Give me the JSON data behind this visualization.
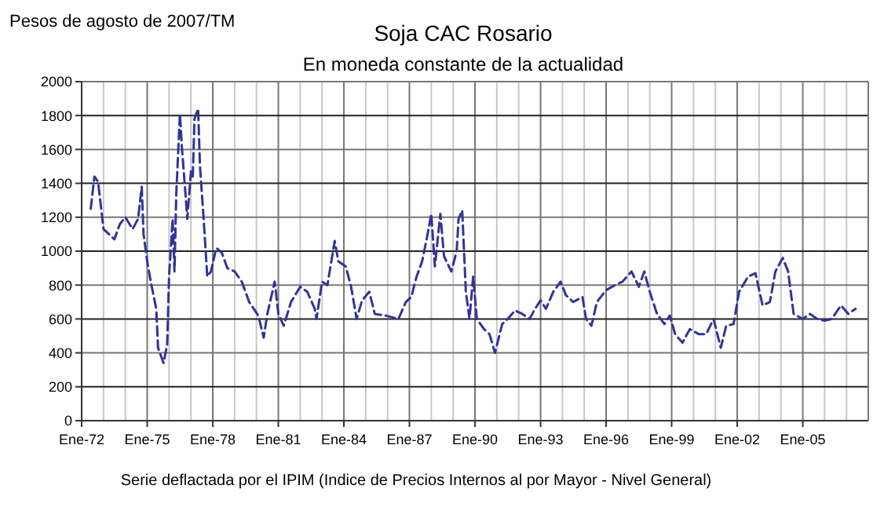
{
  "chart_data": {
    "type": "line",
    "title": "Soja CAC Rosario",
    "subtitle": "En moneda constante de la actualidad",
    "ylabel": "Pesos de agosto de 2007/TM",
    "annotations": [
      "Serie deflactada por el IPIM (Indice de Precios Internos al por Mayor - Nivel General)"
    ],
    "x": [
      "1972-06",
      "1972-08",
      "1972-10",
      "1973-01",
      "1973-04",
      "1973-07",
      "1973-10",
      "1974-01",
      "1974-05",
      "1974-08",
      "1974-10",
      "1974-11",
      "1975-01",
      "1975-03",
      "1975-06",
      "1975-07",
      "1975-10",
      "1975-12",
      "1976-01",
      "1976-03",
      "1976-04",
      "1976-05",
      "1976-07",
      "1976-08",
      "1976-10",
      "1976-11",
      "1977-01",
      "1977-02",
      "1977-03",
      "1977-05",
      "1977-06",
      "1977-08",
      "1977-10",
      "1977-12",
      "1978-03",
      "1978-06",
      "1978-09",
      "1979-01",
      "1979-05",
      "1979-09",
      "1980-02",
      "1980-05",
      "1980-07",
      "1980-11",
      "1981-01",
      "1981-04",
      "1981-08",
      "1982-01",
      "1982-05",
      "1982-09",
      "1982-10",
      "1983-01",
      "1983-04",
      "1983-08",
      "1983-10",
      "1984-02",
      "1984-05",
      "1984-08",
      "1984-11",
      "1985-03",
      "1985-06",
      "1985-12",
      "1986-07",
      "1986-11",
      "1987-02",
      "1987-05",
      "1987-08",
      "1987-11",
      "1988-01",
      "1988-03",
      "1988-06",
      "1988-08",
      "1988-12",
      "1989-03",
      "1989-04",
      "1989-06",
      "1989-08",
      "1989-10",
      "1989-12",
      "1990-02",
      "1990-06",
      "1990-09",
      "1990-12",
      "1991-04",
      "1991-07",
      "1991-11",
      "1992-03",
      "1992-07",
      "1992-10",
      "1993-01",
      "1993-04",
      "1993-08",
      "1993-12",
      "1994-03",
      "1994-07",
      "1994-12",
      "1995-02",
      "1995-05",
      "1995-08",
      "1996-01",
      "1996-06",
      "1996-10",
      "1997-03",
      "1997-07",
      "1997-10",
      "1998-01",
      "1998-05",
      "1998-09",
      "1998-12",
      "1999-03",
      "1999-07",
      "1999-11",
      "2000-04",
      "2000-08",
      "2000-12",
      "2001-04",
      "2001-07",
      "2001-11",
      "2002-02",
      "2002-07",
      "2002-11",
      "2003-03",
      "2003-07",
      "2003-10",
      "2004-02",
      "2004-05",
      "2004-08",
      "2005-01",
      "2005-05",
      "2005-09",
      "2006-01",
      "2006-05",
      "2006-10",
      "2007-02",
      "2007-06"
    ],
    "series": [
      {
        "color": "#333399",
        "values": [
          1250,
          1440,
          1410,
          1130,
          1100,
          1070,
          1160,
          1200,
          1130,
          1190,
          1380,
          1100,
          940,
          820,
          660,
          430,
          340,
          450,
          850,
          1190,
          880,
          1340,
          1810,
          1620,
          1340,
          1190,
          1470,
          1440,
          1780,
          1840,
          1500,
          1190,
          850,
          880,
          1020,
          990,
          900,
          880,
          820,
          700,
          620,
          490,
          630,
          820,
          630,
          560,
          700,
          790,
          760,
          660,
          600,
          820,
          800,
          1060,
          940,
          910,
          790,
          600,
          710,
          760,
          630,
          620,
          600,
          700,
          730,
          850,
          940,
          1100,
          1220,
          910,
          1220,
          970,
          880,
          1000,
          1190,
          1240,
          760,
          600,
          850,
          600,
          540,
          510,
          400,
          570,
          600,
          650,
          630,
          600,
          660,
          710,
          660,
          760,
          820,
          740,
          700,
          730,
          600,
          560,
          700,
          770,
          800,
          820,
          880,
          790,
          880,
          760,
          630,
          570,
          620,
          510,
          460,
          540,
          510,
          510,
          600,
          430,
          560,
          570,
          760,
          850,
          870,
          680,
          700,
          880,
          960,
          880,
          630,
          600,
          630,
          600,
          590,
          600,
          680,
          630,
          660
        ]
      }
    ],
    "xlim": [
      "1972-01",
      "2008-01"
    ],
    "xticks": [
      {
        "value": "1972-01",
        "label": "Ene-72"
      },
      {
        "value": "1973-01",
        "label": null
      },
      {
        "value": "1974-01",
        "label": null
      },
      {
        "value": "1975-01",
        "label": "Ene-75"
      },
      {
        "value": "1976-01",
        "label": null
      },
      {
        "value": "1977-01",
        "label": null
      },
      {
        "value": "1978-01",
        "label": "Ene-78"
      },
      {
        "value": "1979-01",
        "label": null
      },
      {
        "value": "1980-01",
        "label": null
      },
      {
        "value": "1981-01",
        "label": "Ene-81"
      },
      {
        "value": "1982-01",
        "label": null
      },
      {
        "value": "1983-01",
        "label": null
      },
      {
        "value": "1984-01",
        "label": "Ene-84"
      },
      {
        "value": "1985-01",
        "label": null
      },
      {
        "value": "1986-01",
        "label": null
      },
      {
        "value": "1987-01",
        "label": "Ene-87"
      },
      {
        "value": "1988-01",
        "label": null
      },
      {
        "value": "1989-01",
        "label": null
      },
      {
        "value": "1990-01",
        "label": "Ene-90"
      },
      {
        "value": "1991-01",
        "label": null
      },
      {
        "value": "1992-01",
        "label": null
      },
      {
        "value": "1993-01",
        "label": "Ene-93"
      },
      {
        "value": "1994-01",
        "label": null
      },
      {
        "value": "1995-01",
        "label": null
      },
      {
        "value": "1996-01",
        "label": "Ene-96"
      },
      {
        "value": "1997-01",
        "label": null
      },
      {
        "value": "1998-01",
        "label": null
      },
      {
        "value": "1999-01",
        "label": "Ene-99"
      },
      {
        "value": "2000-01",
        "label": null
      },
      {
        "value": "2001-01",
        "label": null
      },
      {
        "value": "2002-01",
        "label": "Ene-02"
      },
      {
        "value": "2003-01",
        "label": null
      },
      {
        "value": "2004-01",
        "label": null
      },
      {
        "value": "2005-01",
        "label": "Ene-05"
      },
      {
        "value": "2006-01",
        "label": null
      },
      {
        "value": "2007-01",
        "label": null
      },
      {
        "value": "2008-01",
        "label": null
      }
    ],
    "ylim": [
      0,
      2000
    ],
    "yticks": [
      0,
      200,
      400,
      600,
      800,
      1000,
      1200,
      1400,
      1600,
      1800,
      2000
    ],
    "grid": true,
    "marker": "none",
    "line_style": "dashed"
  }
}
